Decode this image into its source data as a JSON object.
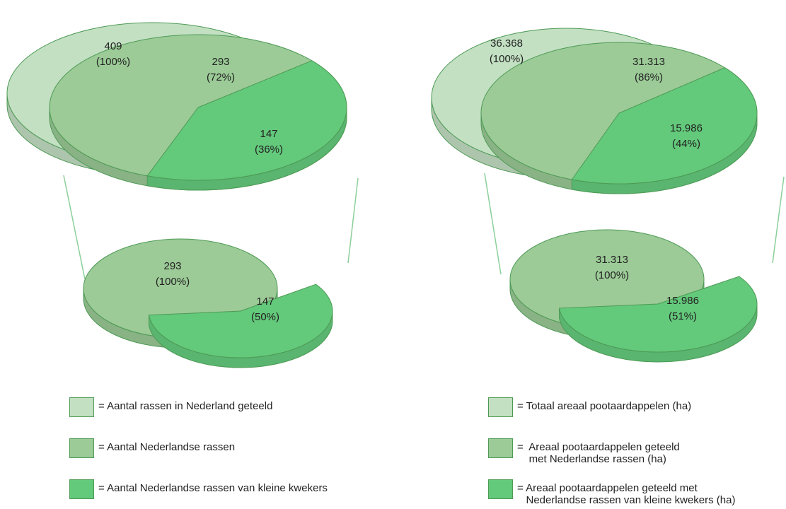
{
  "colors": {
    "light": "#c3e0c3",
    "medium": "#9ccb97",
    "bright": "#63c97b",
    "stroke": "#4e9a55",
    "connector": "#8ccf9a"
  },
  "chart_data": [
    {
      "type": "pie",
      "title": "",
      "top_pies": [
        {
          "values": [
            "409",
            "(100%)"
          ],
          "share": 1.0
        },
        {
          "values": [
            "293",
            "(72%)"
          ],
          "share": 0.72
        },
        {
          "values": [
            "147",
            "(36%)"
          ],
          "share": 0.36
        }
      ],
      "bottom_pie": [
        {
          "values": [
            "293",
            "(100%)"
          ],
          "share": 1.0
        },
        {
          "values": [
            "147",
            "(50%)"
          ],
          "share": 0.5
        }
      ],
      "legend": [
        {
          "color": "light",
          "text": "= Aantal rassen in Nederland geteeld"
        },
        {
          "color": "medium",
          "text": "= Aantal Nederlandse rassen"
        },
        {
          "color": "bright",
          "text": "= Aantal Nederlandse rassen van kleine kwekers"
        }
      ]
    },
    {
      "type": "pie",
      "title": "",
      "top_pies": [
        {
          "values": [
            "36.368",
            "(100%)"
          ],
          "share": 1.0
        },
        {
          "values": [
            "31.313",
            "(86%)"
          ],
          "share": 0.86
        },
        {
          "values": [
            "15.986",
            "(44%)"
          ],
          "share": 0.44
        }
      ],
      "bottom_pie": [
        {
          "values": [
            "31.313",
            "(100%)"
          ],
          "share": 1.0
        },
        {
          "values": [
            "15.986",
            "(51%)"
          ],
          "share": 0.51
        }
      ],
      "legend": [
        {
          "color": "light",
          "text": "= Totaal areaal pootaardappelen (ha)"
        },
        {
          "color": "medium",
          "text": "=  Areaal pootaardappelen geteeld\n    met Nederlandse rassen (ha)"
        },
        {
          "color": "bright",
          "text": "= Areaal pootaardappelen geteeld met\n   Nederlandse rassen van kleine kwekers (ha)"
        }
      ]
    }
  ]
}
